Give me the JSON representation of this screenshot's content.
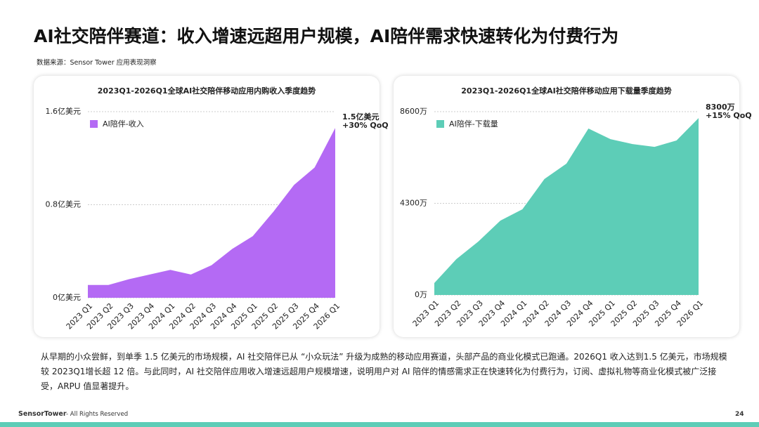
{
  "header": {
    "title": "AI社交陪伴赛道：收入增速远超用户规模，AI陪伴需求快速转化为付费行为",
    "source": "数据来源：Sensor Tower 应用表现洞察"
  },
  "chart_data": [
    {
      "type": "area",
      "title": "2023Q1-2026Q1全球AI社交陪伴移动应用内购收入季度趋势",
      "categories": [
        "2023 Q1",
        "2023 Q2",
        "2023 Q3",
        "2023 Q4",
        "2024 Q1",
        "2024 Q2",
        "2024 Q3",
        "2024 Q4",
        "2025 Q1",
        "2025 Q2",
        "2025 Q3",
        "2025 Q4",
        "2026 Q1"
      ],
      "series": [
        {
          "name": "AI陪伴-收入",
          "color": "#b46af4",
          "values": [
            0.11,
            0.11,
            0.16,
            0.2,
            0.24,
            0.2,
            0.28,
            0.42,
            0.53,
            0.74,
            0.97,
            1.12,
            1.46
          ]
        }
      ],
      "ylim": [
        0,
        1.6
      ],
      "yticks": [
        {
          "value": 0,
          "label": "0亿美元"
        },
        {
          "value": 0.8,
          "label": "0.8亿美元"
        },
        {
          "value": 1.6,
          "label": "1.6亿美元"
        }
      ],
      "grid": true,
      "legend": "upper left",
      "annotation": [
        "1.5亿美元",
        "+30% QoQ"
      ]
    },
    {
      "type": "area",
      "title": "2023Q1-2026Q1全球AI社交陪伴移动应用下载量季度趋势",
      "categories": [
        "2023 Q1",
        "2023 Q2",
        "2023 Q3",
        "2023 Q4",
        "2024 Q1",
        "2024 Q2",
        "2024 Q3",
        "2024 Q4",
        "2025 Q1",
        "2025 Q2",
        "2025 Q3",
        "2025 Q4",
        "2026 Q1"
      ],
      "series": [
        {
          "name": "AI陪伴-下载量",
          "color": "#5dcdb7",
          "values": [
            560,
            1680,
            2510,
            3490,
            4020,
            5440,
            6160,
            7810,
            7310,
            7080,
            6950,
            7250,
            8300
          ]
        }
      ],
      "ylim": [
        0,
        8600
      ],
      "yticks": [
        {
          "value": 0,
          "label": "0万"
        },
        {
          "value": 4300,
          "label": "4300万"
        },
        {
          "value": 8600,
          "label": "8600万"
        }
      ],
      "grid": true,
      "legend": "upper left",
      "annotation": [
        "8300万",
        "+15% QoQ"
      ]
    }
  ],
  "summary": "从早期的小众尝鲜，到单季 1.5 亿美元的市场规模，AI 社交陪伴已从 “小众玩法” 升级为成熟的移动应用赛道，头部产品的商业化模式已跑通。2026Q1 收入达到1.5 亿美元，市场规模较 2023Q1增长超 12 倍。与此同时，AI 社交陪伴应用收入增速远超用户规模增速，说明用户对 AI 陪伴的情感需求正在快速转化为付费行为，订阅、虚拟礼物等商业化模式被广泛接受，ARPU 值显著提升。",
  "footer": {
    "brand": "SensorTower",
    "text": "- All Rights Reserved",
    "page": "24"
  }
}
